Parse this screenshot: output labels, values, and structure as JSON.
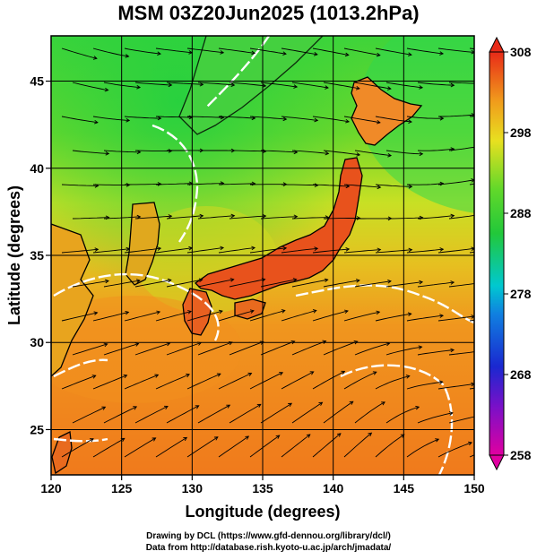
{
  "title": "MSM 03Z20Jun2025 (1013.2hPa)",
  "map": {
    "xlabel": "Longitude (degrees)",
    "ylabel": "Latitude  (degrees)",
    "lon_range": [
      120,
      150
    ],
    "lat_range": [
      22.4,
      47.6
    ],
    "lon_ticks": [
      "120",
      "125",
      "130",
      "135",
      "140",
      "145",
      "150"
    ],
    "lat_ticks": [
      "25",
      "30",
      "35",
      "40",
      "45"
    ],
    "grid": true,
    "grid_spacing_deg": 5,
    "colors": {
      "land_warm": "#e8501a",
      "sea_south": "#f08a1e",
      "sea_mid": "#e8d020",
      "sea_north": "#2ed62e",
      "coastline": "#000000",
      "streamline": "#000000",
      "contour": "#ffffff"
    }
  },
  "colorbar": {
    "labels": [
      "308",
      "298",
      "288",
      "278",
      "268",
      "258"
    ],
    "min": 258,
    "max": 308,
    "colors": [
      "#e8008c",
      "#2020c8",
      "#00bcd8",
      "#2ec830",
      "#e8e020",
      "#f08a18",
      "#e82a18"
    ]
  },
  "credits": {
    "line1": "Drawing by DCL (https://www.gfd-dennou.org/library/dcl/)",
    "line2": "Data from http://database.rish.kyoto-u.ac.jp/arch/jmadata/"
  }
}
